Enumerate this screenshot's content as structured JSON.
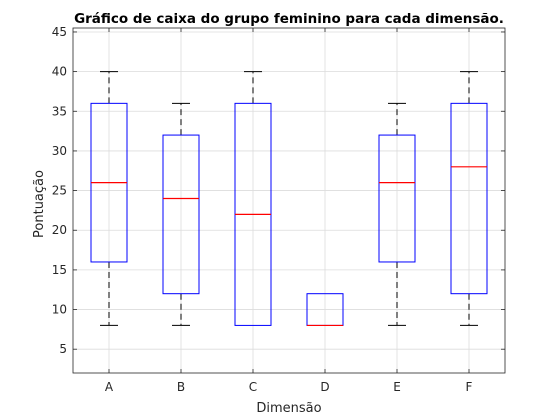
{
  "chart_data": {
    "type": "box",
    "title": "Gráfico de caixa do grupo feminino para cada dimensão.",
    "xlabel": "Dimensão",
    "ylabel": "Pontuação",
    "ylim": [
      2,
      45.5
    ],
    "yticks": [
      5,
      10,
      15,
      20,
      25,
      30,
      35,
      40,
      45
    ],
    "grid": true,
    "colors": {
      "box": "#0000ff",
      "median": "#ff0000",
      "whisker": "#000000",
      "grid": "#dcdcdc"
    },
    "categories": [
      "A",
      "B",
      "C",
      "D",
      "E",
      "F"
    ],
    "boxes": [
      {
        "category": "A",
        "min": 8,
        "q1": 16,
        "median": 26,
        "q3": 36,
        "max": 40
      },
      {
        "category": "B",
        "min": 8,
        "q1": 12,
        "median": 24,
        "q3": 32,
        "max": 36
      },
      {
        "category": "C",
        "min": 8,
        "q1": 8,
        "median": 22,
        "q3": 36,
        "max": 40
      },
      {
        "category": "D",
        "min": 8,
        "q1": 8,
        "median": 8,
        "q3": 12,
        "max": 12
      },
      {
        "category": "E",
        "min": 8,
        "q1": 16,
        "median": 26,
        "q3": 32,
        "max": 36
      },
      {
        "category": "F",
        "min": 8,
        "q1": 12,
        "median": 28,
        "q3": 36,
        "max": 40
      }
    ]
  }
}
